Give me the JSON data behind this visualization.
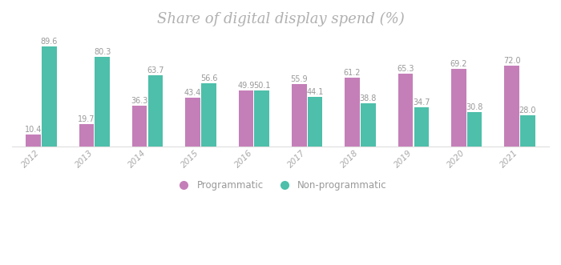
{
  "title": "Share of digital display spend (%)",
  "years": [
    "2012",
    "2013",
    "2014",
    "2015",
    "2016",
    "2017",
    "2018",
    "2019",
    "2020",
    "2021"
  ],
  "programmatic": [
    10.4,
    19.7,
    36.3,
    43.4,
    49.9,
    55.9,
    61.2,
    65.3,
    69.2,
    72.0
  ],
  "non_programmatic": [
    89.6,
    80.3,
    63.7,
    56.6,
    50.1,
    44.1,
    38.8,
    34.7,
    30.8,
    28.0
  ],
  "prog_color": "#c47fb8",
  "non_prog_color": "#4dbfaa",
  "title_color": "#b0b0b0",
  "bar_label_color": "#999999",
  "tick_color": "#aaaaaa",
  "bg_color": "#ffffff",
  "bar_width": 0.28,
  "ylim": [
    0,
    98
  ],
  "legend_labels": [
    "Programmatic",
    "Non-programmatic"
  ],
  "title_fontsize": 13,
  "label_fontsize": 7,
  "tick_fontsize": 7.5
}
